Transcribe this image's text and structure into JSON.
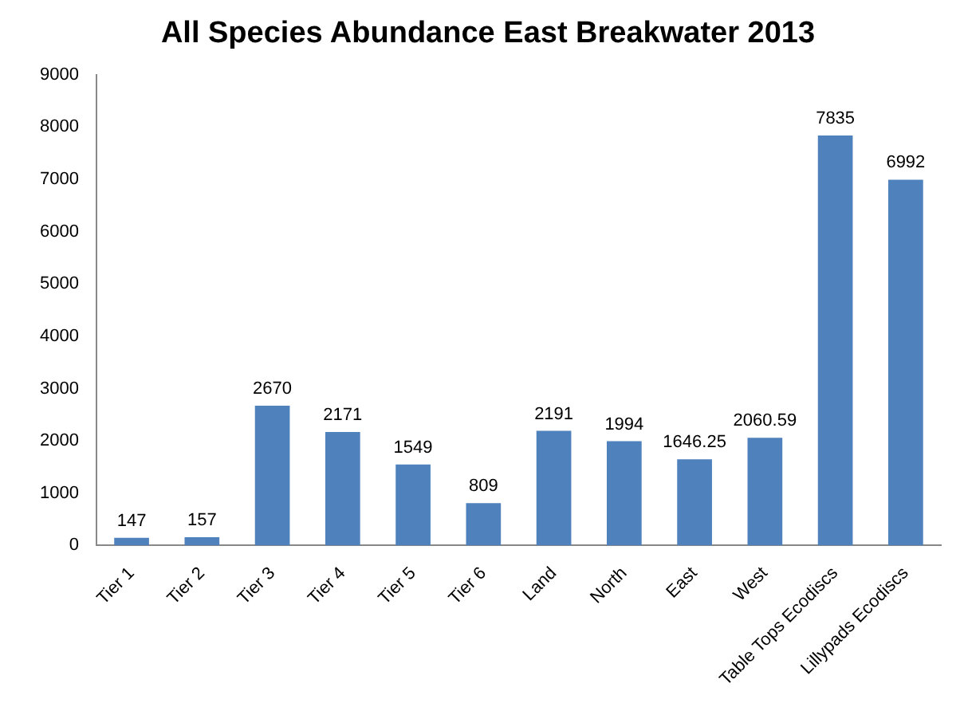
{
  "chart_data": {
    "type": "bar",
    "title": "All Species Abundance East Breakwater 2013",
    "categories": [
      "Tier 1",
      "Tier 2",
      "Tier 3",
      "Tier 4",
      "Tier 5",
      "Tier 6",
      "Land",
      "North",
      "East",
      "West",
      "Table Tops Ecodiscs",
      "Lillypads Ecodiscs"
    ],
    "values": [
      147,
      157,
      2670,
      2171,
      1549,
      809,
      2191,
      1994,
      1646.25,
      2060.59,
      7835,
      6992
    ],
    "color": "#4f81bd",
    "ylim": [
      0,
      9000
    ],
    "yticks": [
      0,
      1000,
      2000,
      3000,
      4000,
      5000,
      6000,
      7000,
      8000,
      9000
    ],
    "grid": false,
    "legend": false,
    "data_labels": true
  }
}
